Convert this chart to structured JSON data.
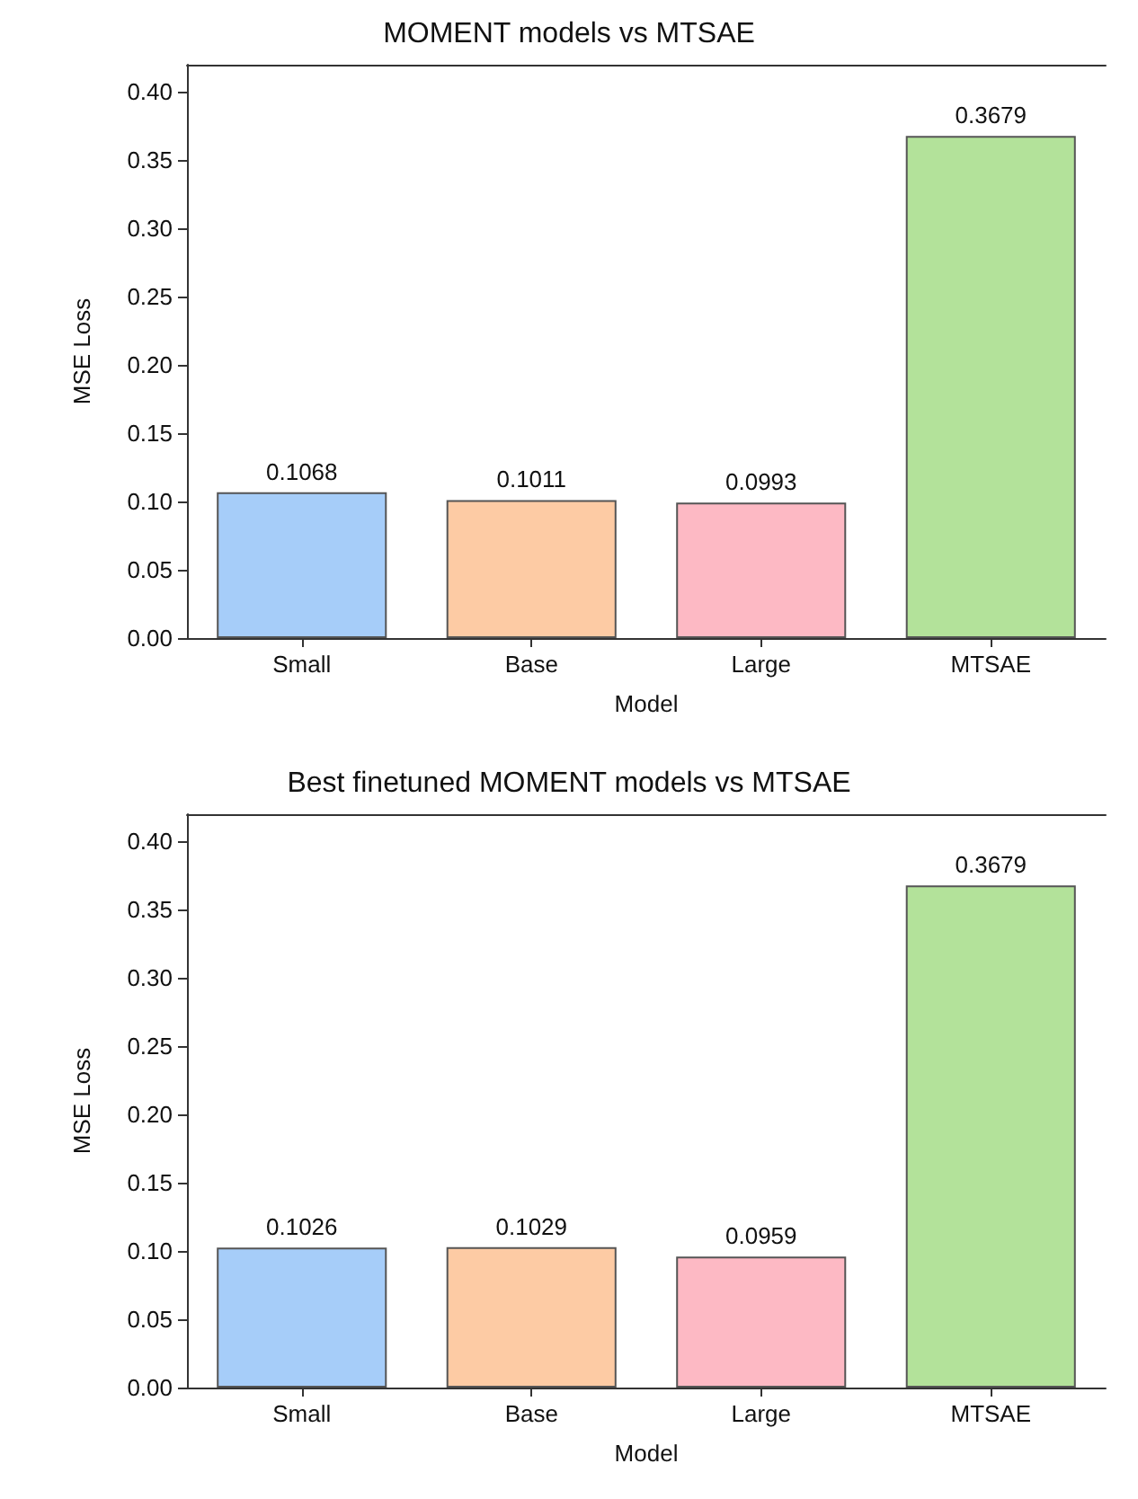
{
  "chart_data": [
    {
      "type": "bar",
      "title": "MOMENT models vs MTSAE",
      "xlabel": "Model",
      "ylabel": "MSE Loss",
      "categories": [
        "Small",
        "Base",
        "Large",
        "MTSAE"
      ],
      "values": [
        0.1068,
        0.1011,
        0.0993,
        0.3679
      ],
      "colors": [
        "#a6cdf9",
        "#fdcba4",
        "#fdb9c4",
        "#b3e29a"
      ],
      "ylim": [
        0,
        0.42
      ],
      "yticks": [
        {
          "value": 0,
          "label": "0.00"
        },
        {
          "value": 0.05,
          "label": "0.05"
        },
        {
          "value": 0.1,
          "label": "0.10"
        },
        {
          "value": 0.15,
          "label": "0.15"
        },
        {
          "value": 0.2,
          "label": "0.20"
        },
        {
          "value": 0.25,
          "label": "0.25"
        },
        {
          "value": 0.3,
          "label": "0.30"
        },
        {
          "value": 0.35,
          "label": "0.35"
        },
        {
          "value": 0.4,
          "label": "0.40"
        }
      ],
      "data_labels": true
    },
    {
      "type": "bar",
      "title": "Best finetuned MOMENT models vs MTSAE",
      "xlabel": "Model",
      "ylabel": "MSE Loss",
      "categories": [
        "Small",
        "Base",
        "Large",
        "MTSAE"
      ],
      "values": [
        0.1026,
        0.1029,
        0.0959,
        0.3679
      ],
      "colors": [
        "#a6cdf9",
        "#fdcba4",
        "#fdb9c4",
        "#b3e29a"
      ],
      "ylim": [
        0,
        0.42
      ],
      "yticks": [
        {
          "value": 0,
          "label": "0.00"
        },
        {
          "value": 0.05,
          "label": "0.05"
        },
        {
          "value": 0.1,
          "label": "0.10"
        },
        {
          "value": 0.15,
          "label": "0.15"
        },
        {
          "value": 0.2,
          "label": "0.20"
        },
        {
          "value": 0.25,
          "label": "0.25"
        },
        {
          "value": 0.3,
          "label": "0.30"
        },
        {
          "value": 0.35,
          "label": "0.35"
        },
        {
          "value": 0.4,
          "label": "0.40"
        }
      ],
      "data_labels": true
    }
  ]
}
